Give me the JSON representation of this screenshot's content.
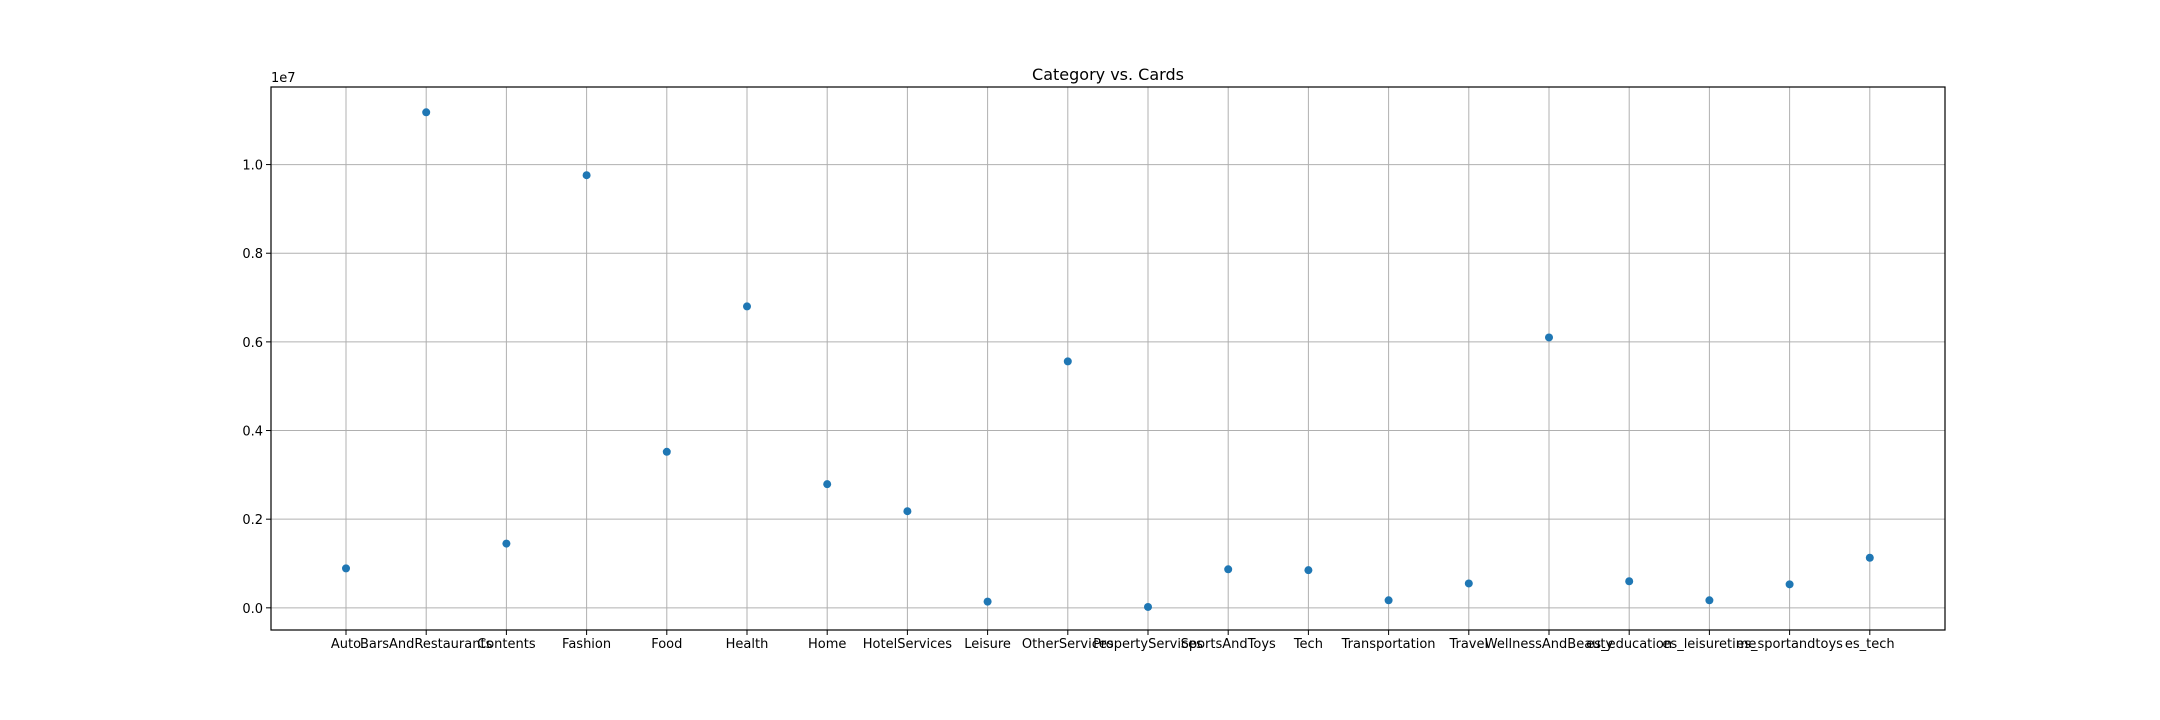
{
  "chart_data": {
    "type": "scatter",
    "title": "Category vs. Cards",
    "xlabel": "",
    "ylabel": "",
    "y_offset_label": "1e7",
    "ylim": [
      -0.05,
      1.175
    ],
    "y_ticks": [
      0.0,
      0.2,
      0.4,
      0.6,
      0.8,
      1.0
    ],
    "y_tick_labels": [
      "0.0",
      "0.2",
      "0.4",
      "0.6",
      "0.8",
      "1.0"
    ],
    "categories": [
      "Auto",
      "BarsAndRestaurants",
      "Contents",
      "Fashion",
      "Food",
      "Health",
      "Home",
      "HotelServices",
      "Leisure",
      "OtherServices",
      "PropertyServices",
      "SportsAndToys",
      "Tech",
      "Transportation",
      "Travel",
      "WellnessAndBeauty",
      "es_education",
      "es_leisuretime",
      "es_sportandtoys",
      "es_tech"
    ],
    "values": [
      0.089,
      1.118,
      0.145,
      0.976,
      0.352,
      0.68,
      0.279,
      0.218,
      0.014,
      0.556,
      0.002,
      0.087,
      0.085,
      0.017,
      0.055,
      0.61,
      0.06,
      0.017,
      0.053,
      0.113
    ],
    "grid": true,
    "marker_color": "#1f77b4"
  }
}
